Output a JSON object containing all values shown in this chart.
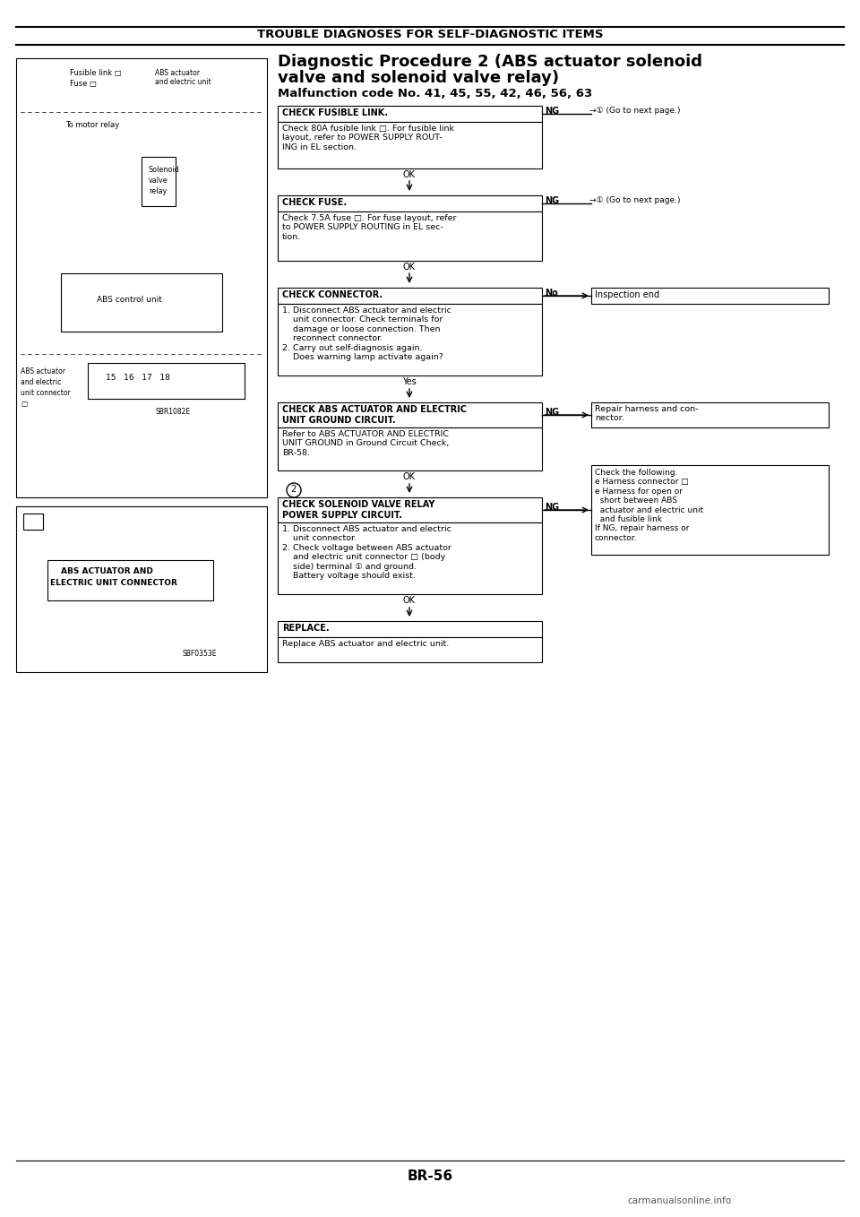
{
  "page_bg": "#ffffff",
  "header_text": "TROUBLE DIAGNOSES FOR SELF-DIAGNOSTIC ITEMS",
  "title_line1": "Diagnostic Procedure 2 (ABS actuator solenoid",
  "title_line2": "valve and solenoid valve relay)",
  "subtitle": "Malfunction code No. 41, 45, 55, 42, 46, 56, 63",
  "footer_text": "BR-56",
  "watermark": "carmanualsonline.info",
  "step1_header": "CHECK FUSIBLE LINK.",
  "step1_body": "Check 80A fusible link □. For fusible link\nlayout, refer to POWER SUPPLY ROUT-\nING in EL section.",
  "step2_header": "CHECK FUSE.",
  "step2_body": "Check 7.5A fuse □. For fuse layout, refer\nto POWER SUPPLY ROUTING in EL sec-\ntion.",
  "step3_header": "CHECK CONNECTOR.",
  "step3_body": "1. Disconnect ABS actuator and electric\n    unit connector. Check terminals for\n    damage or loose connection. Then\n    reconnect connector.\n2. Carry out self-diagnosis again.\n    Does warning lamp activate again?",
  "step4_header": "CHECK ABS ACTUATOR AND ELECTRIC\nUNIT GROUND CIRCUIT.",
  "step4_body": "Refer to ABS ACTUATOR AND ELECTRIC\nUNIT GROUND in Ground Circuit Check,\nBR-58.",
  "step5_header": "CHECK SOLENOID VALVE RELAY\nPOWER SUPPLY CIRCUIT.",
  "step5_body": "1. Disconnect ABS actuator and electric\n    unit connector.\n2. Check voltage between ABS actuator\n    and electric unit connector □ (body\n    side) terminal ① and ground.\n    Battery voltage should exist.",
  "step6_header": "REPLACE.",
  "step6_body": "Replace ABS actuator and electric unit.",
  "ng1_text": "NG",
  "ng1_side": "→① (Go to next page.)",
  "ng2_text": "NG",
  "ng2_side": "→① (Go to next page.)",
  "ng3_text": "No",
  "ng3_box": "Inspection end",
  "ng4_text": "NG",
  "ng4_box": "Repair harness and con-\nnector.",
  "ng5_text": "NG",
  "ng5_box": "Check the following.\ne Harness connector □\ne Harness for open or\n  short between ABS\n  actuator and electric unit\n  and fusible link\nIf NG, repair harness or\nconnector.",
  "diag_label1a": "Fusible link □",
  "diag_label1b": "Fuse □",
  "diag_label2a": "ABS actuator",
  "diag_label2b": "and electric unit",
  "diag_label3": "To motor relay",
  "diag_label4a": "Solenoid",
  "diag_label4b": "valve",
  "diag_label4c": "relay",
  "diag_label5": "ABS control unit",
  "diag_label6a": "ABS actuator",
  "diag_label6b": "and electric",
  "diag_label6c": "unit connector",
  "diag_label6d": "□",
  "diag_ref1": "SBR1082E",
  "diag_label7a": "ABS ACTUATOR AND",
  "diag_label7b": "ELECTRIC UNIT CONNECTOR",
  "diag_ref2": "SBF0353E",
  "circle2_label": "2"
}
